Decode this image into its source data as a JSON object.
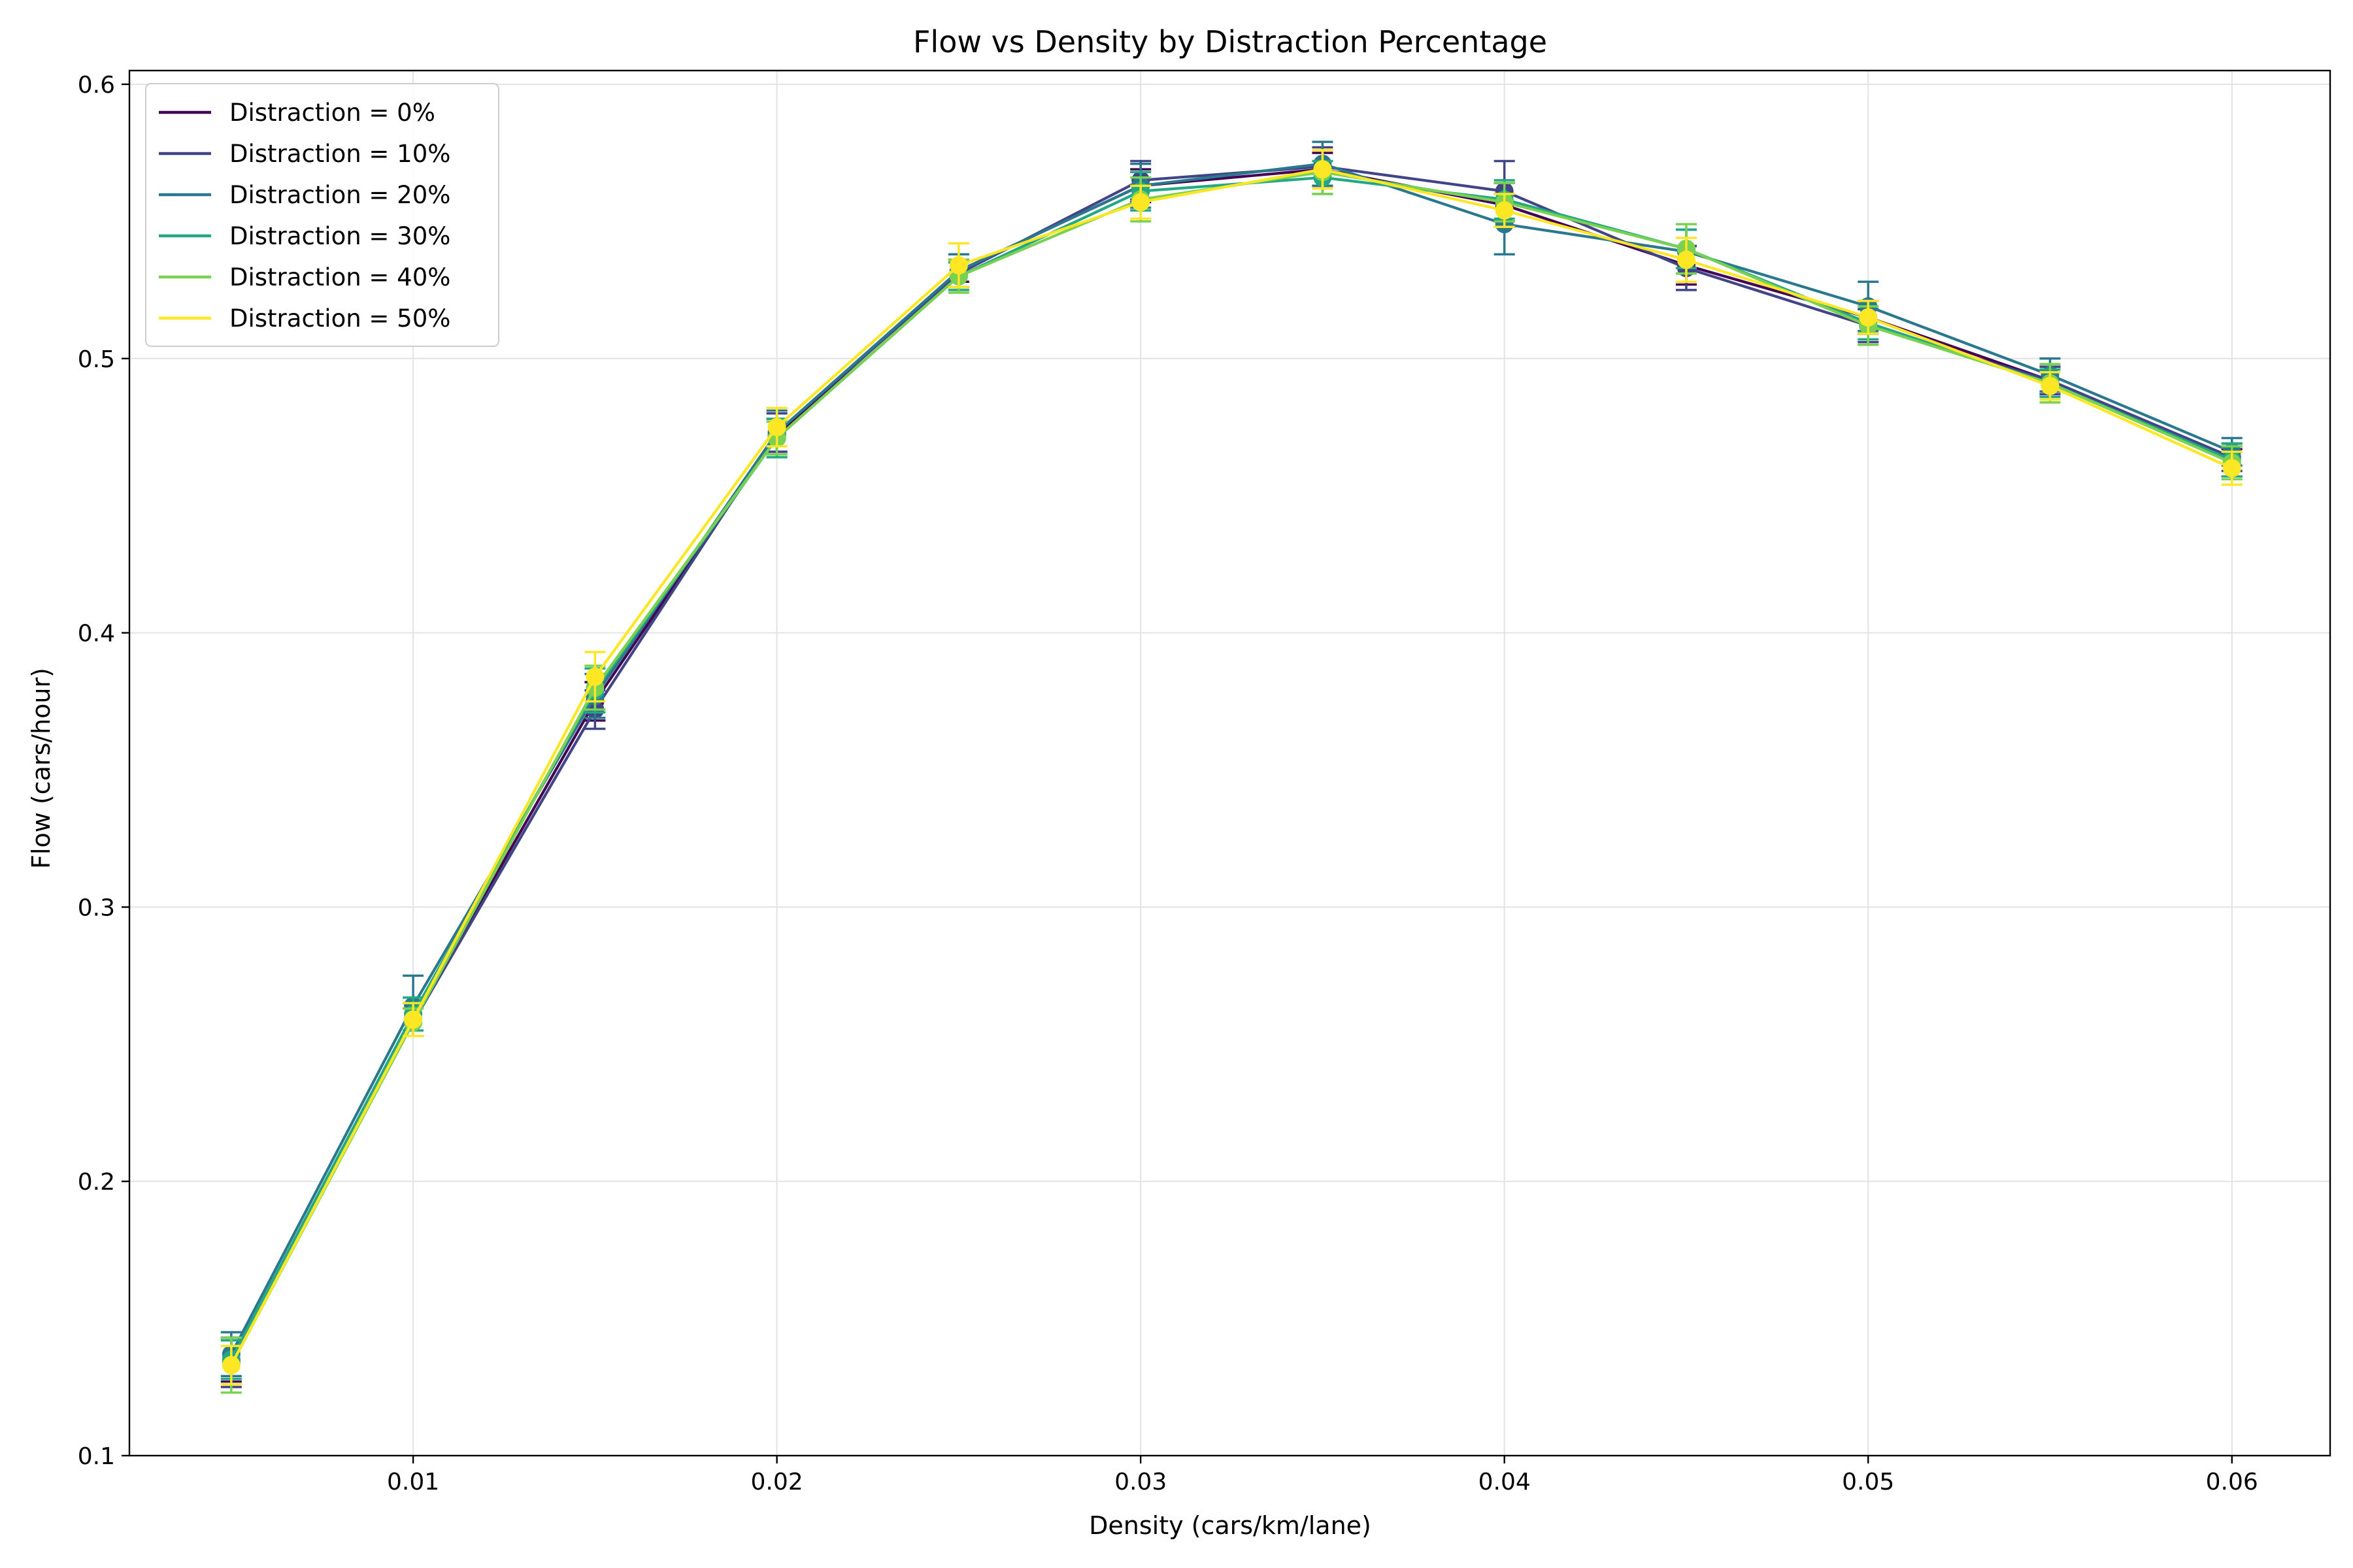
{
  "chart_data": {
    "type": "line",
    "title": "Flow vs Density by Distraction Percentage",
    "xlabel": "Density (cars/km/lane)",
    "ylabel": "Flow (cars/hour)",
    "xlim": [
      0.0022,
      0.0627
    ],
    "ylim": [
      0.1,
      0.605
    ],
    "x_ticks": [
      0.01,
      0.02,
      0.03,
      0.04,
      0.05,
      0.06
    ],
    "x_tick_labels": [
      "0.01",
      "0.02",
      "0.03",
      "0.04",
      "0.05",
      "0.06"
    ],
    "y_ticks": [
      0.1,
      0.2,
      0.3,
      0.4,
      0.5,
      0.6
    ],
    "y_tick_labels": [
      "0.1",
      "0.2",
      "0.3",
      "0.4",
      "0.5",
      "0.6"
    ],
    "grid": true,
    "legend_position": "top-left",
    "x": [
      0.005,
      0.01,
      0.015,
      0.02,
      0.025,
      0.03,
      0.035,
      0.04,
      0.045,
      0.05,
      0.055,
      0.06
    ],
    "series": [
      {
        "name": "Distraction = 0%",
        "color": "#440154",
        "values": [
          0.135,
          0.259,
          0.375,
          0.472,
          0.532,
          0.563,
          0.569,
          0.556,
          0.534,
          0.515,
          0.492,
          0.462
        ],
        "errors": [
          0.008,
          0.006,
          0.007,
          0.006,
          0.004,
          0.006,
          0.006,
          0.008,
          0.007,
          0.006,
          0.005,
          0.005
        ]
      },
      {
        "name": "Distraction = 10%",
        "color": "#414487",
        "values": [
          0.134,
          0.258,
          0.372,
          0.473,
          0.531,
          0.565,
          0.57,
          0.561,
          0.533,
          0.512,
          0.492,
          0.464
        ],
        "errors": [
          0.009,
          0.005,
          0.007,
          0.007,
          0.005,
          0.007,
          0.007,
          0.011,
          0.008,
          0.006,
          0.005,
          0.005
        ]
      },
      {
        "name": "Distraction = 20%",
        "color": "#2a788e",
        "values": [
          0.137,
          0.264,
          0.377,
          0.473,
          0.532,
          0.563,
          0.571,
          0.549,
          0.539,
          0.519,
          0.494,
          0.466
        ],
        "errors": [
          0.008,
          0.011,
          0.008,
          0.008,
          0.006,
          0.008,
          0.008,
          0.011,
          0.008,
          0.009,
          0.006,
          0.005
        ]
      },
      {
        "name": "Distraction = 30%",
        "color": "#22a884",
        "values": [
          0.135,
          0.261,
          0.379,
          0.471,
          0.53,
          0.561,
          0.566,
          0.558,
          0.54,
          0.513,
          0.491,
          0.463
        ],
        "errors": [
          0.007,
          0.006,
          0.008,
          0.007,
          0.005,
          0.007,
          0.006,
          0.007,
          0.007,
          0.006,
          0.005,
          0.006
        ]
      },
      {
        "name": "Distraction = 40%",
        "color": "#7ad151",
        "values": [
          0.133,
          0.258,
          0.38,
          0.471,
          0.53,
          0.558,
          0.568,
          0.557,
          0.54,
          0.512,
          0.491,
          0.462
        ],
        "errors": [
          0.01,
          0.005,
          0.008,
          0.006,
          0.006,
          0.008,
          0.008,
          0.007,
          0.009,
          0.007,
          0.007,
          0.006
        ]
      },
      {
        "name": "Distraction = 50%",
        "color": "#fde725",
        "values": [
          0.133,
          0.259,
          0.384,
          0.475,
          0.534,
          0.557,
          0.569,
          0.554,
          0.536,
          0.515,
          0.49,
          0.46
        ],
        "errors": [
          0.007,
          0.006,
          0.009,
          0.007,
          0.008,
          0.006,
          0.007,
          0.006,
          0.008,
          0.006,
          0.005,
          0.006
        ]
      }
    ]
  }
}
